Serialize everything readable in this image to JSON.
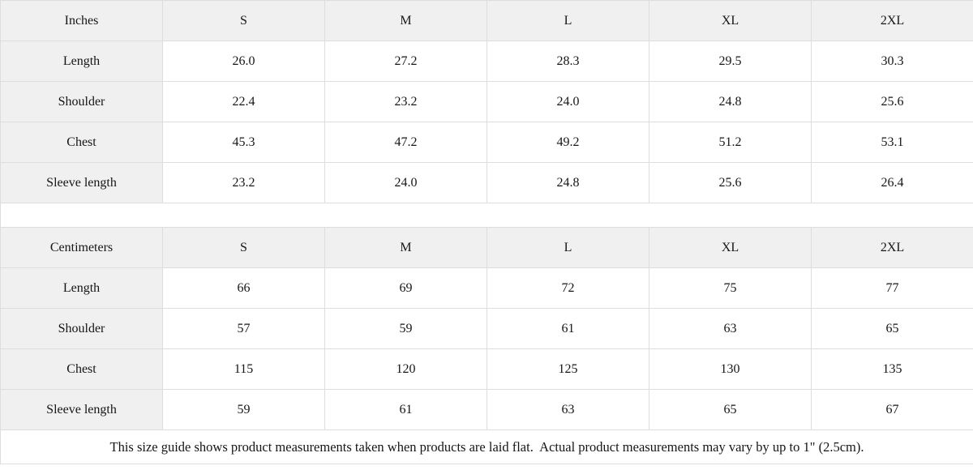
{
  "chart_data": [
    {
      "type": "table",
      "unit_header": "Inches",
      "size_headers": [
        "S",
        "M",
        "L",
        "XL",
        "2XL"
      ],
      "rows": [
        {
          "label": "Length",
          "values": [
            "26.0",
            "27.2",
            "28.3",
            "29.5",
            "30.3"
          ]
        },
        {
          "label": "Shoulder",
          "values": [
            "22.4",
            "23.2",
            "24.0",
            "24.8",
            "25.6"
          ]
        },
        {
          "label": "Chest",
          "values": [
            "45.3",
            "47.2",
            "49.2",
            "51.2",
            "53.1"
          ]
        },
        {
          "label": "Sleeve length",
          "values": [
            "23.2",
            "24.0",
            "24.8",
            "25.6",
            "26.4"
          ]
        }
      ]
    },
    {
      "type": "table",
      "unit_header": "Centimeters",
      "size_headers": [
        "S",
        "M",
        "L",
        "XL",
        "2XL"
      ],
      "rows": [
        {
          "label": "Length",
          "values": [
            "66",
            "69",
            "72",
            "75",
            "77"
          ]
        },
        {
          "label": "Shoulder",
          "values": [
            "57",
            "59",
            "61",
            "63",
            "65"
          ]
        },
        {
          "label": "Chest",
          "values": [
            "115",
            "120",
            "125",
            "130",
            "135"
          ]
        },
        {
          "label": "Sleeve length",
          "values": [
            "59",
            "61",
            "63",
            "65",
            "67"
          ]
        }
      ]
    }
  ],
  "footer": {
    "note": "This size guide shows product measurements taken when products are laid flat.  Actual product measurements may vary by up to 1\" (2.5cm)."
  },
  "colors": {
    "header_background": "#f0f0f0",
    "cell_background": "#ffffff",
    "border": "#dddddd",
    "text": "#161616"
  }
}
